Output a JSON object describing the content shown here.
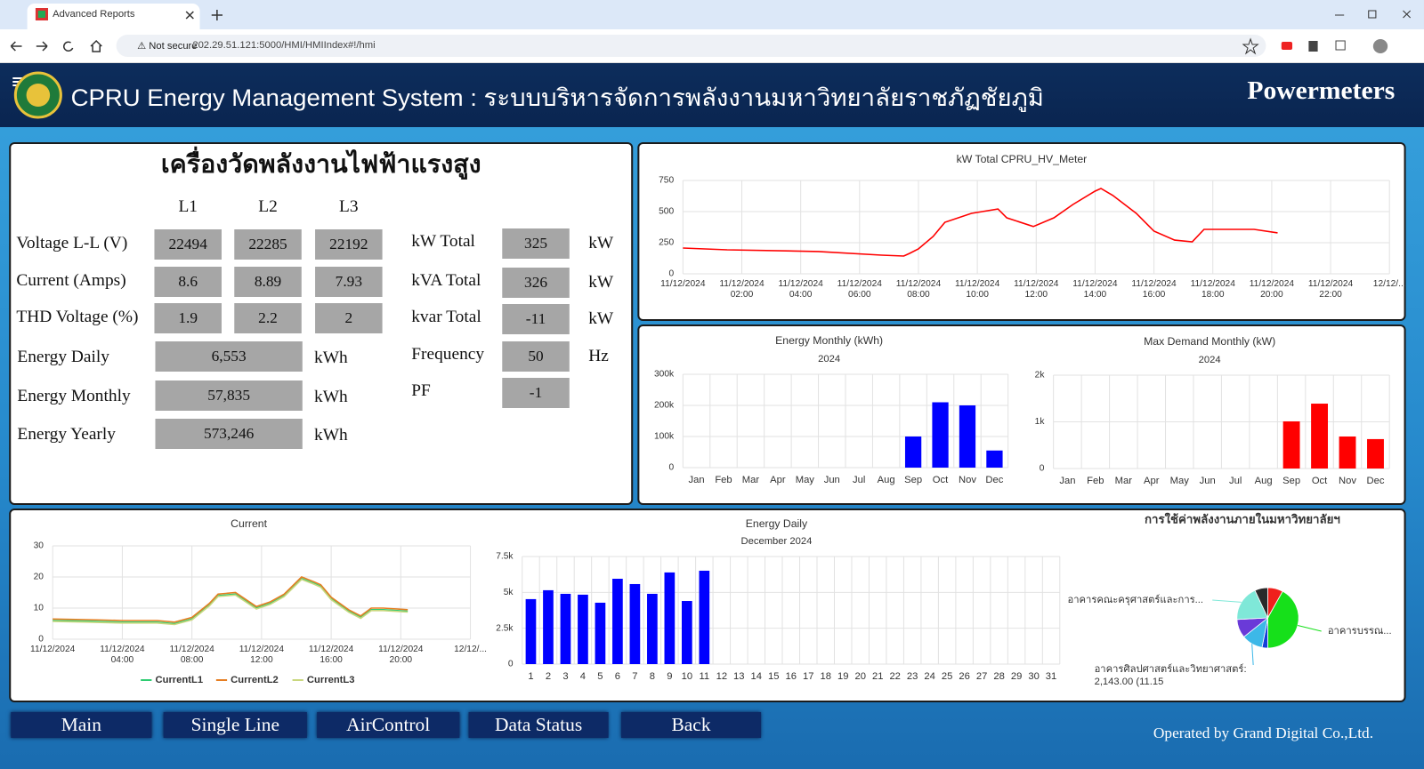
{
  "browser": {
    "tab_title": "Advanced Reports",
    "security": "Not secure",
    "url": "202.29.51.121:5000/HMI/HMIIndex#!/hmi"
  },
  "header": {
    "title": "CPRU Energy Management System : ระบบบริหารจัดการพลังงานมหาวิทยาลัยราชภัฏชัยภูมิ",
    "section": "Powermeters"
  },
  "meter_panel": {
    "title": "เครื่องวัดพลังงานไฟฟ้าแรงสูง",
    "headers": [
      "L1",
      "L2",
      "L3"
    ],
    "phase_rows": [
      {
        "label": "Voltage L-L (V)",
        "values": [
          "22494",
          "22285",
          "22192"
        ]
      },
      {
        "label": "Current (Amps)",
        "values": [
          "8.6",
          "8.89",
          "7.93"
        ]
      },
      {
        "label": "THD Voltage (%)",
        "values": [
          "1.9",
          "2.2",
          "2"
        ]
      }
    ],
    "energy_rows": [
      {
        "label": "Energy Daily",
        "value": "6,553",
        "unit": "kWh"
      },
      {
        "label": "Energy Monthly",
        "value": "57,835",
        "unit": "kWh"
      },
      {
        "label": "Energy Yearly",
        "value": "573,246",
        "unit": "kWh"
      }
    ],
    "totals": [
      {
        "label": "kW Total",
        "value": "325",
        "unit": "kW"
      },
      {
        "label": "kVA Total",
        "value": "326",
        "unit": "kW"
      },
      {
        "label": "kvar Total",
        "value": "-11",
        "unit": "kW"
      },
      {
        "label": "Frequency",
        "value": "50",
        "unit": "Hz"
      },
      {
        "label": "PF",
        "value": "-1"
      }
    ]
  },
  "chart_data": [
    {
      "type": "line",
      "title": "kW Total CPRU_HV_Meter",
      "x": [
        0,
        1.5,
        4.6,
        6.75,
        7.5,
        7.7,
        8,
        8.5,
        8.9,
        9.8,
        10.7,
        11,
        11.9,
        12.6,
        13.25,
        14,
        14.2,
        14.6,
        15.4,
        16,
        16.7,
        17.3,
        17.7,
        18.5,
        19.4,
        20.2
      ],
      "series": [
        {
          "name": "kW Total",
          "color": "#ff0000",
          "values": [
            207,
            193,
            179,
            150,
            143,
            164,
            200,
            300,
            414,
            486,
            521,
            450,
            380,
            450,
            557,
            664,
            686,
            630,
            486,
            343,
            271,
            257,
            357,
            357,
            357,
            329
          ]
        }
      ],
      "xlim": [
        0,
        24
      ],
      "xticks": [
        {
          "value": 0,
          "label": "11/12/2024"
        },
        {
          "value": 2,
          "label": "11/12/2024\n02:00"
        },
        {
          "value": 4,
          "label": "11/12/2024\n04:00"
        },
        {
          "value": 6,
          "label": "11/12/2024\n06:00"
        },
        {
          "value": 8,
          "label": "11/12/2024\n08:00"
        },
        {
          "value": 10,
          "label": "11/12/2024\n10:00"
        },
        {
          "value": 12,
          "label": "11/12/2024\n12:00"
        },
        {
          "value": 14,
          "label": "11/12/2024\n14:00"
        },
        {
          "value": 16,
          "label": "11/12/2024\n16:00"
        },
        {
          "value": 18,
          "label": "11/12/2024\n18:00"
        },
        {
          "value": 20,
          "label": "11/12/2024\n20:00"
        },
        {
          "value": 22,
          "label": "11/12/2024\n22:00"
        },
        {
          "value": 24,
          "label": "12/12/..."
        }
      ],
      "ylim": [
        0,
        750
      ],
      "yticks": [
        0,
        250,
        500,
        750
      ],
      "grid": true
    },
    {
      "type": "bar",
      "title": "Energy Monthly (kWh)",
      "subtitle": "2024",
      "categories": [
        "Jan",
        "Feb",
        "Mar",
        "Apr",
        "May",
        "Jun",
        "Jul",
        "Aug",
        "Sep",
        "Oct",
        "Nov",
        "Dec"
      ],
      "values": [
        0,
        0,
        0,
        0,
        0,
        0,
        0,
        0,
        100000,
        210000,
        200000,
        55000
      ],
      "color": "#0000ff",
      "ylim": [
        0,
        300000
      ],
      "yticks": [
        0,
        {
          "value": 100000,
          "label": "100k"
        },
        {
          "value": 200000,
          "label": "200k"
        },
        {
          "value": 300000,
          "label": "300k"
        }
      ],
      "grid": true
    },
    {
      "type": "bar",
      "title": "Max Demand Monthly (kW)",
      "subtitle": "2024",
      "categories": [
        "Jan",
        "Feb",
        "Mar",
        "Apr",
        "May",
        "Jun",
        "Jul",
        "Aug",
        "Sep",
        "Oct",
        "Nov",
        "Dec"
      ],
      "values": [
        0,
        0,
        0,
        0,
        0,
        0,
        0,
        0,
        1010,
        1390,
        686,
        630
      ],
      "color": "#ff0000",
      "ylim": [
        0,
        2000
      ],
      "yticks": [
        0,
        {
          "value": 1000,
          "label": "1k"
        },
        {
          "value": 2000,
          "label": "2k"
        }
      ],
      "grid": true
    },
    {
      "type": "line",
      "title": "Current",
      "x": [
        0,
        2,
        4,
        6,
        7,
        8,
        9,
        9.5,
        10.5,
        11.7,
        12.5,
        13.3,
        14.3,
        15,
        15.4,
        16,
        17,
        17.7,
        18.3,
        19,
        20.4
      ],
      "series": [
        {
          "name": "CurrentL1",
          "color": "#2ecc71",
          "values": [
            6,
            5.8,
            5.5,
            5.5,
            5,
            6.5,
            11,
            14,
            14.5,
            10,
            11.5,
            14,
            19.5,
            18,
            17,
            13,
            9,
            7,
            9.5,
            9.5,
            9
          ]
        },
        {
          "name": "CurrentL2",
          "color": "#e67e22",
          "values": [
            6.5,
            6.3,
            6,
            6,
            5.5,
            7,
            11.5,
            14.5,
            15,
            10.5,
            12,
            14.5,
            20,
            18.5,
            17.5,
            13.5,
            9.5,
            7.5,
            10,
            10,
            9.5
          ]
        },
        {
          "name": "CurrentL3",
          "color": "#c9d77e",
          "values": [
            5.7,
            5.5,
            5.2,
            5.2,
            4.7,
            6.2,
            10.7,
            13.7,
            14.2,
            9.7,
            11.2,
            13.7,
            19.2,
            17.7,
            16.7,
            12.7,
            8.7,
            6.7,
            9.2,
            9.2,
            8.7
          ]
        }
      ],
      "xlim": [
        0,
        24
      ],
      "xticks": [
        {
          "value": 0,
          "label": "11/12/2024"
        },
        {
          "value": 4,
          "label": "11/12/2024\n04:00"
        },
        {
          "value": 8,
          "label": "11/12/2024\n08:00"
        },
        {
          "value": 12,
          "label": "11/12/2024\n12:00"
        },
        {
          "value": 16,
          "label": "11/12/2024\n16:00"
        },
        {
          "value": 20,
          "label": "11/12/2024\n20:00"
        },
        {
          "value": 24,
          "label": "12/12/..."
        }
      ],
      "ylim": [
        0,
        30
      ],
      "yticks": [
        0,
        10,
        20,
        30
      ],
      "grid": true,
      "legend": "bottom"
    },
    {
      "type": "bar",
      "title": "Energy Daily",
      "subtitle": "December 2024",
      "categories": [
        "1",
        "2",
        "3",
        "4",
        "5",
        "6",
        "7",
        "8",
        "9",
        "10",
        "11",
        "12",
        "13",
        "14",
        "15",
        "16",
        "17",
        "18",
        "19",
        "20",
        "21",
        "22",
        "23",
        "24",
        "25",
        "26",
        "27",
        "28",
        "29",
        "30",
        "31"
      ],
      "values": [
        4530,
        5150,
        4900,
        4840,
        4280,
        5950,
        5580,
        4900,
        6390,
        4400,
        6510,
        null,
        null,
        null,
        null,
        null,
        null,
        null,
        null,
        null,
        null,
        null,
        null,
        null,
        null,
        null,
        null,
        null,
        null,
        null,
        null
      ],
      "color": "#0000ff",
      "ylim": [
        0,
        7500
      ],
      "yticks": [
        0,
        {
          "value": 2500,
          "label": "2.5k"
        },
        {
          "value": 5000,
          "label": "5k"
        },
        {
          "value": 7500,
          "label": "7.5k"
        }
      ],
      "grid": true
    },
    {
      "type": "pie",
      "title": "การใช้ค่าพลังงานภายในมหาวิทยาลัยฯ",
      "categories": [
        null,
        "อาคารบรรณ...",
        null,
        "อาคารศิลปศาสตร์และวิทยาศาสตร์:",
        null,
        "อาคารคณะครุศาสตร์และการ...",
        null
      ],
      "values": [
        8,
        42,
        3,
        11.15,
        10,
        19,
        6.85
      ],
      "value_labels": [
        null,
        null,
        null,
        "2,143.00 (11.15",
        null,
        null,
        null
      ],
      "colors": [
        "#f0201c",
        "#16e01a",
        "#1440d8",
        "#3cb8e8",
        "#6a3ad8",
        "#7fe8d8",
        "#2a2a2a"
      ]
    }
  ],
  "nav": {
    "buttons": [
      "Main",
      "Single Line",
      "AirControl",
      "Data Status",
      "Back"
    ],
    "footer": "Operated by Grand Digital Co.,Ltd."
  }
}
